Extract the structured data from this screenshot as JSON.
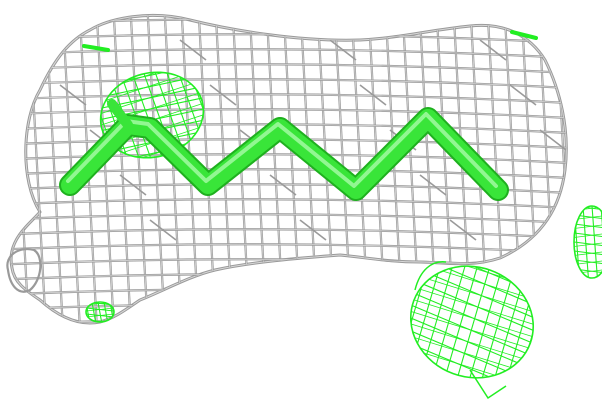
{
  "scene": {
    "background_color": "#ffffff",
    "density_mesh_color": "#9a9a9a",
    "density_mesh_highlight": "#d8d8d8",
    "difference_mesh_color": "#22ee22",
    "backbone_trace_color": "#39e539",
    "backbone_trace_edge": "#1fb01f",
    "top_border_color": "#000000"
  }
}
